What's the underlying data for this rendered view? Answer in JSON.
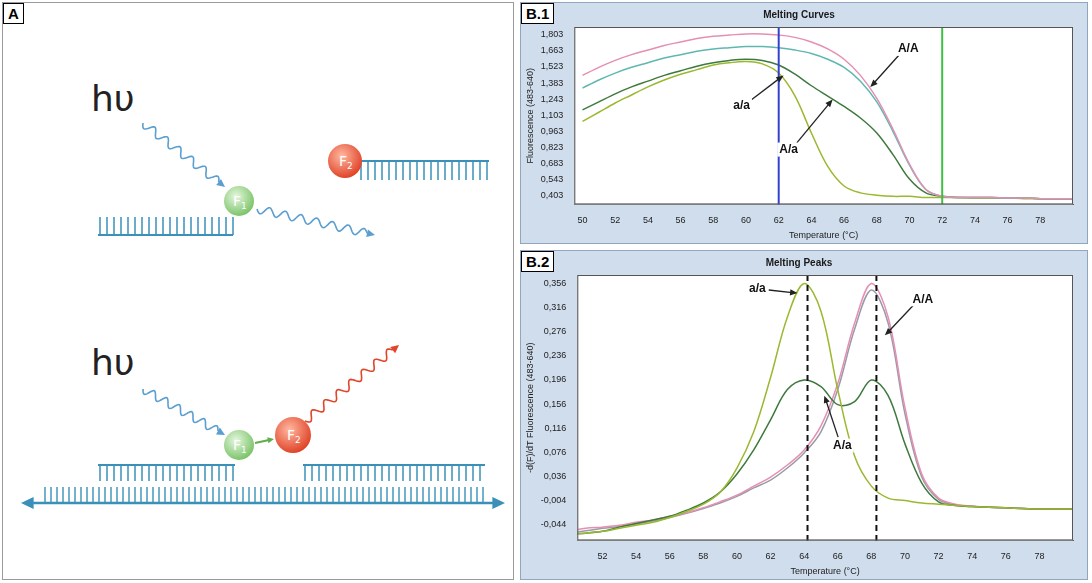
{
  "diagram": {
    "panel": "A",
    "photon": "hυ",
    "donor": "F1",
    "acceptor": "F2"
  },
  "chart_data": [
    {
      "type": "line",
      "panel": "B.1",
      "title": "Melting Curves",
      "x_label": "Temperature (°C)",
      "y_label": "Fluorescence (483-640)",
      "x": [
        50,
        51,
        52,
        53,
        54,
        55,
        56,
        57,
        58,
        59,
        60,
        61,
        62,
        63,
        64,
        65,
        66,
        67,
        68,
        69,
        70,
        71,
        72,
        73,
        74,
        75,
        76,
        77,
        78,
        79,
        80
      ],
      "series": [
        {
          "color": "#e58fb2",
          "values": [
            1.45,
            1.52,
            1.58,
            1.63,
            1.67,
            1.71,
            1.74,
            1.77,
            1.79,
            1.8,
            1.81,
            1.81,
            1.8,
            1.78,
            1.74,
            1.68,
            1.59,
            1.45,
            1.25,
            0.98,
            0.68,
            0.46,
            0.4,
            0.39,
            0.39,
            0.39,
            0.385,
            0.385,
            0.38,
            0.38,
            0.38
          ]
        },
        {
          "color": "#5fb8b0",
          "values": [
            1.34,
            1.41,
            1.47,
            1.52,
            1.56,
            1.6,
            1.63,
            1.66,
            1.68,
            1.69,
            1.7,
            1.7,
            1.69,
            1.67,
            1.64,
            1.59,
            1.52,
            1.4,
            1.22,
            0.96,
            0.67,
            0.46,
            0.4,
            0.39,
            0.39,
            0.39,
            0.385,
            0.385,
            0.38,
            0.38,
            0.38
          ]
        },
        {
          "color": "#3e7a3e",
          "values": [
            1.15,
            1.22,
            1.29,
            1.35,
            1.4,
            1.45,
            1.49,
            1.53,
            1.56,
            1.58,
            1.59,
            1.58,
            1.54,
            1.46,
            1.36,
            1.27,
            1.18,
            1.08,
            0.95,
            0.76,
            0.55,
            0.43,
            0.4,
            0.39,
            0.39,
            0.39,
            0.385,
            0.385,
            0.38,
            0.38,
            0.38
          ]
        },
        {
          "color": "#9ab830",
          "values": [
            1.05,
            1.13,
            1.21,
            1.28,
            1.35,
            1.41,
            1.46,
            1.5,
            1.54,
            1.56,
            1.57,
            1.55,
            1.47,
            1.27,
            0.95,
            0.66,
            0.49,
            0.43,
            0.41,
            0.4,
            0.4,
            0.39,
            0.39,
            0.39,
            0.385,
            0.385,
            0.385,
            0.38,
            0.38,
            0.38,
            0.38
          ]
        }
      ],
      "xlim": [
        49.5,
        80
      ],
      "xticks": [
        50,
        52,
        54,
        56,
        58,
        60,
        62,
        64,
        66,
        68,
        70,
        72,
        74,
        76,
        78
      ],
      "ylim": [
        0.33,
        1.87
      ],
      "yticks": [
        {
          "value": 0.403,
          "label": "0,403"
        },
        {
          "value": 0.543,
          "label": "0,543"
        },
        {
          "value": 0.683,
          "label": "0,683"
        },
        {
          "value": 0.823,
          "label": "0,823"
        },
        {
          "value": 0.963,
          "label": "0,963"
        },
        {
          "value": 1.103,
          "label": "1,103"
        },
        {
          "value": 1.243,
          "label": "1,243"
        },
        {
          "value": 1.383,
          "label": "1,383"
        },
        {
          "value": 1.523,
          "label": "1,523"
        },
        {
          "value": 1.663,
          "label": "1,663"
        },
        {
          "value": 1.803,
          "label": "1,803"
        }
      ],
      "grid": false,
      "vlines": [
        {
          "x": 62,
          "color": "#3341d1",
          "line_style": "solid"
        },
        {
          "x": 72,
          "color": "#3fc043",
          "line_style": "solid"
        }
      ],
      "annotations": [
        {
          "text": "A/A",
          "x": 67.6,
          "y": 1.35
        },
        {
          "text": "a/a",
          "x": 62.3,
          "y": 1.45
        },
        {
          "text": "A/a",
          "x": 65.3,
          "y": 1.24
        }
      ]
    },
    {
      "type": "line",
      "panel": "B.2",
      "title": "Melting Peaks",
      "x_label": "Temperature (°C)",
      "y_label": "-d(F)/dT Fluorescence (483-640)",
      "x": [
        50,
        51,
        52,
        53,
        54,
        55,
        56,
        57,
        58,
        59,
        60,
        61,
        62,
        63,
        64,
        65,
        66,
        67,
        68,
        69,
        70,
        71,
        72,
        73,
        74,
        75,
        76,
        77,
        78,
        79,
        80
      ],
      "series": [
        {
          "color": "#9ab830",
          "values": [
            -0.06,
            -0.058,
            -0.055,
            -0.05,
            -0.045,
            -0.04,
            -0.032,
            -0.022,
            -0.01,
            0.01,
            0.05,
            0.11,
            0.2,
            0.3,
            0.356,
            0.31,
            0.18,
            0.07,
            0.02,
            0.0,
            -0.004,
            -0.008,
            -0.01,
            -0.012,
            -0.014,
            -0.015,
            -0.016,
            -0.017,
            -0.018,
            -0.018,
            -0.018
          ]
        },
        {
          "color": "#3e7a3e",
          "values": [
            -0.06,
            -0.058,
            -0.055,
            -0.048,
            -0.042,
            -0.036,
            -0.03,
            -0.02,
            -0.008,
            0.01,
            0.04,
            0.08,
            0.13,
            0.18,
            0.196,
            0.185,
            0.155,
            0.16,
            0.196,
            0.17,
            0.09,
            0.025,
            -0.006,
            -0.012,
            -0.014,
            -0.015,
            -0.016,
            -0.017,
            -0.018,
            -0.018,
            -0.018
          ]
        },
        {
          "color": "#e58fb2",
          "values": [
            -0.055,
            -0.05,
            -0.048,
            -0.045,
            -0.04,
            -0.036,
            -0.03,
            -0.024,
            -0.016,
            -0.006,
            0.005,
            0.02,
            0.035,
            0.055,
            0.08,
            0.12,
            0.19,
            0.29,
            0.356,
            0.3,
            0.15,
            0.04,
            0.0,
            -0.01,
            -0.013,
            -0.015,
            -0.016,
            -0.017,
            -0.018,
            -0.018,
            -0.018
          ]
        },
        {
          "color": "#9a9aa8",
          "values": [
            -0.058,
            -0.054,
            -0.05,
            -0.047,
            -0.043,
            -0.038,
            -0.032,
            -0.025,
            -0.017,
            -0.008,
            0.003,
            0.017,
            0.03,
            0.05,
            0.075,
            0.11,
            0.18,
            0.28,
            0.345,
            0.29,
            0.14,
            0.035,
            -0.002,
            -0.011,
            -0.014,
            -0.015,
            -0.016,
            -0.017,
            -0.018,
            -0.018,
            -0.018
          ]
        }
      ],
      "xlim": [
        50.5,
        80
      ],
      "xticks": [
        52,
        54,
        56,
        58,
        60,
        62,
        64,
        66,
        68,
        70,
        72,
        74,
        76,
        78
      ],
      "ylim": [
        -0.07,
        0.37
      ],
      "yticks": [
        {
          "value": -0.044,
          "label": "-0,044"
        },
        {
          "value": -0.004,
          "label": "-0,004"
        },
        {
          "value": 0.036,
          "label": "0,036"
        },
        {
          "value": 0.076,
          "label": "0,076"
        },
        {
          "value": 0.116,
          "label": "0,116"
        },
        {
          "value": 0.156,
          "label": "0,156"
        },
        {
          "value": 0.196,
          "label": "0,196"
        },
        {
          "value": 0.236,
          "label": "0,236"
        },
        {
          "value": 0.276,
          "label": "0,276"
        },
        {
          "value": 0.316,
          "label": "0,316"
        },
        {
          "value": 0.356,
          "label": "0,356"
        }
      ],
      "grid": false,
      "vlines": [
        {
          "x": 64.2,
          "color": "#111111",
          "line_style": "dashed"
        },
        {
          "x": 68.3,
          "color": "#111111",
          "line_style": "dashed"
        }
      ],
      "annotations": [
        {
          "text": "a/a",
          "x": 63.6,
          "y": 0.34
        },
        {
          "text": "A/A",
          "x": 68.8,
          "y": 0.27
        },
        {
          "text": "A/a",
          "x": 65.2,
          "y": 0.17
        }
      ]
    }
  ]
}
